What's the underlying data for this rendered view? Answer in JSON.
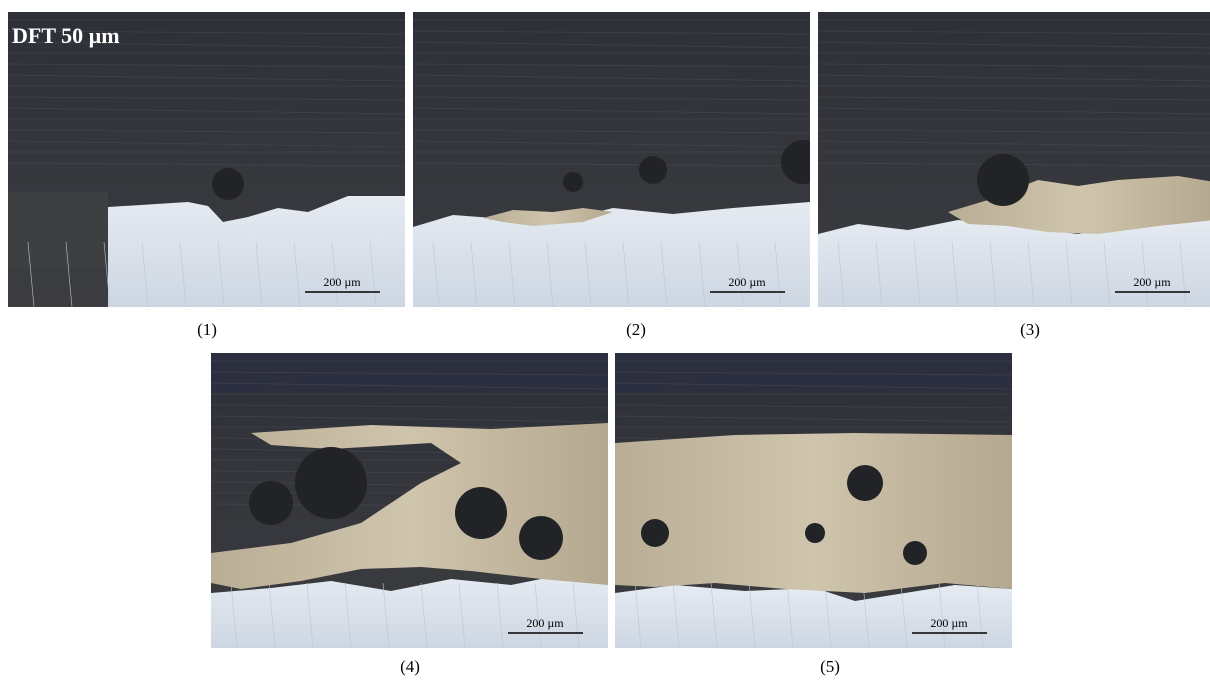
{
  "figure": {
    "annotation": "DFT 50 µm",
    "panels": [
      {
        "label": "(1)",
        "scale_bar": "200 µm"
      },
      {
        "label": "(2)",
        "scale_bar": "200 µm"
      },
      {
        "label": "(3)",
        "scale_bar": "200 µm"
      },
      {
        "label": "(4)",
        "scale_bar": "200 µm"
      },
      {
        "label": "(5)",
        "scale_bar": "200 µm"
      }
    ]
  }
}
